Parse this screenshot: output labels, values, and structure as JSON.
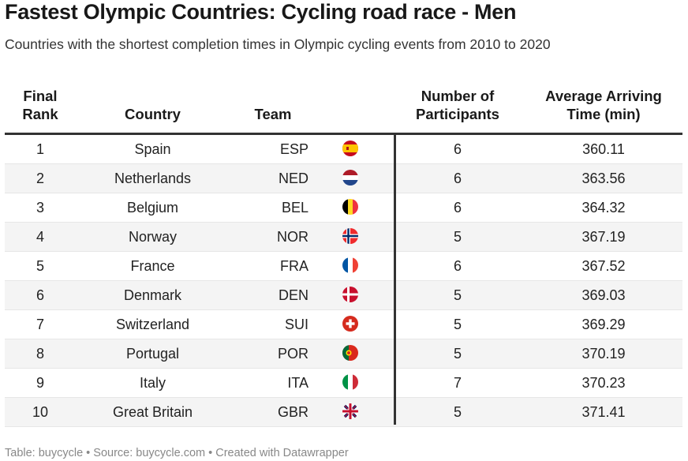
{
  "title": "Fastest Olympic Countries: Cycling road race - Men",
  "subtitle": "Countries with the shortest completion times in Olympic cycling events from 2010 to 2020",
  "footer": "Table: buycycle • Source: buycycle.com • Created with Datawrapper",
  "chart_data": {
    "type": "table",
    "title": "Fastest Olympic Countries: Cycling road race - Men",
    "subtitle": "Countries with the shortest completion times in Olympic cycling events from 2010 to 2020",
    "columns": {
      "rank": "Final\nRank",
      "country": "Country",
      "team": "Team",
      "flag": "",
      "participants": "Number of\nParticipants",
      "time": "Average Arriving\nTime (min)"
    },
    "rows": [
      {
        "rank": "1",
        "country": "Spain",
        "team": "ESP",
        "flag": "spain-flag-icon",
        "participants": "6",
        "time": "360.11"
      },
      {
        "rank": "2",
        "country": "Netherlands",
        "team": "NED",
        "flag": "netherlands-flag-icon",
        "participants": "6",
        "time": "363.56"
      },
      {
        "rank": "3",
        "country": "Belgium",
        "team": "BEL",
        "flag": "belgium-flag-icon",
        "participants": "6",
        "time": "364.32"
      },
      {
        "rank": "4",
        "country": "Norway",
        "team": "NOR",
        "flag": "norway-flag-icon",
        "participants": "5",
        "time": "367.19"
      },
      {
        "rank": "5",
        "country": "France",
        "team": "FRA",
        "flag": "france-flag-icon",
        "participants": "6",
        "time": "367.52"
      },
      {
        "rank": "6",
        "country": "Denmark",
        "team": "DEN",
        "flag": "denmark-flag-icon",
        "participants": "5",
        "time": "369.03"
      },
      {
        "rank": "7",
        "country": "Switzerland",
        "team": "SUI",
        "flag": "switzerland-flag-icon",
        "participants": "5",
        "time": "369.29"
      },
      {
        "rank": "8",
        "country": "Portugal",
        "team": "POR",
        "flag": "portugal-flag-icon",
        "participants": "5",
        "time": "370.19"
      },
      {
        "rank": "9",
        "country": "Italy",
        "team": "ITA",
        "flag": "italy-flag-icon",
        "participants": "7",
        "time": "370.23"
      },
      {
        "rank": "10",
        "country": "Great Britain",
        "team": "GBR",
        "flag": "great-britain-flag-icon",
        "participants": "5",
        "time": "371.41"
      }
    ]
  },
  "header": {
    "rank_line1": "Final",
    "rank_line2": "Rank",
    "country": "Country",
    "team": "Team",
    "participants_line1": "Number of",
    "participants_line2": "Participants",
    "time_line1": "Average Arriving",
    "time_line2": "Time (min)"
  },
  "colors": {
    "stripe": "#f4f4f4",
    "rule": "#333333",
    "footer_text": "#888888"
  }
}
